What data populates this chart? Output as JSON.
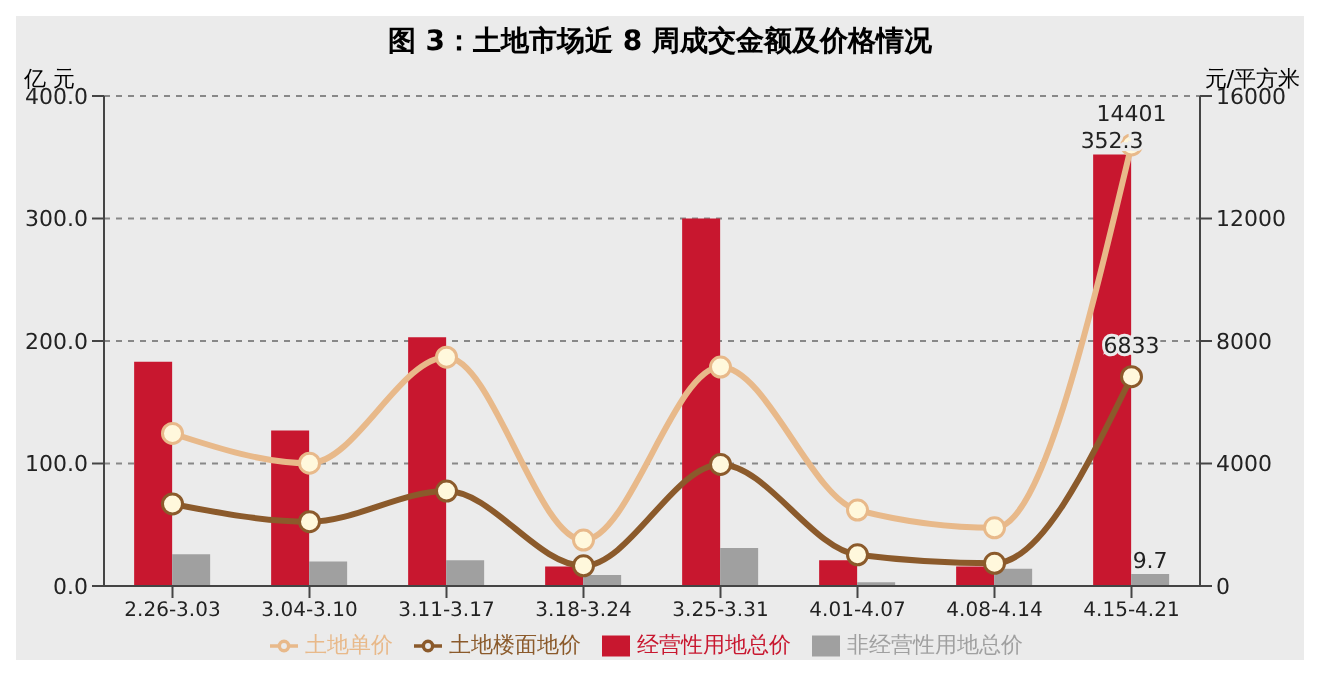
{
  "chart_data": {
    "type": "bar",
    "title": "图 3：土地市场近 8 周成交金额及价格情况",
    "ylabel": "亿 元",
    "y2label": "元/平方米",
    "categories": [
      "2.26-3.03",
      "3.04-3.10",
      "3.11-3.17",
      "3.18-3.24",
      "3.25-3.31",
      "4.01-4.07",
      "4.08-4.14",
      "4.15-4.21"
    ],
    "series": [
      {
        "name": "经营性用地总价",
        "color": "#c8172f",
        "values": [
          183,
          127,
          203,
          16,
          300,
          21,
          16,
          352.3
        ],
        "value_labels": [
          null,
          null,
          null,
          null,
          null,
          null,
          null,
          "352.3"
        ]
      },
      {
        "name": "非经营性用地总价",
        "color": "#a0a0a0",
        "values": [
          26,
          20,
          21,
          9,
          31,
          3,
          14,
          9.7
        ],
        "value_labels": [
          null,
          null,
          null,
          null,
          null,
          null,
          null,
          "9.7"
        ]
      },
      {
        "name": "土地楼面地价",
        "type": "line",
        "axis": "y2",
        "color": "#8b5a2b",
        "values": [
          2680,
          2100,
          3100,
          660,
          3970,
          1020,
          740,
          6833
        ],
        "value_labels": [
          null,
          null,
          null,
          null,
          null,
          null,
          null,
          "6833"
        ]
      },
      {
        "name": "土地单价",
        "type": "line",
        "axis": "y2",
        "color": "#e8b98a",
        "values": [
          4980,
          4010,
          7470,
          1500,
          7150,
          2480,
          1900,
          14401
        ],
        "value_labels": [
          null,
          null,
          null,
          null,
          null,
          null,
          null,
          "14401"
        ]
      }
    ],
    "ylim": [
      0,
      400
    ],
    "yticks": [
      {
        "value": 0,
        "label": "0.0"
      },
      {
        "value": 100,
        "label": "100.0"
      },
      {
        "value": 200,
        "label": "200.0"
      },
      {
        "value": 300,
        "label": "300.0"
      },
      {
        "value": 400,
        "label": "400.0"
      }
    ],
    "y2lim": [
      0,
      16000
    ],
    "y2ticks": [
      0,
      4000,
      8000,
      12000,
      16000
    ],
    "grid": "y",
    "legend": "bottom",
    "marker": "circle",
    "line_style": "solid"
  }
}
